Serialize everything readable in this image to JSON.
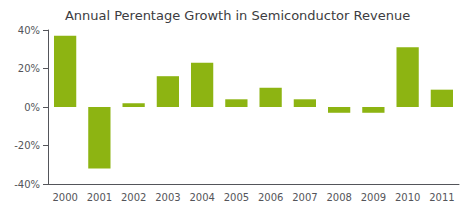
{
  "chart_data": {
    "type": "bar",
    "title": "Annual Perentage Growth in Semiconductor Revenue",
    "categories": [
      "2000",
      "2001",
      "2002",
      "2003",
      "2004",
      "2005",
      "2006",
      "2007",
      "2008",
      "2009",
      "2010",
      "2011"
    ],
    "values": [
      37,
      -32,
      2,
      16,
      23,
      4,
      10,
      4,
      -3,
      -3,
      31,
      9
    ],
    "color": "#8db412",
    "ylim": [
      -40,
      40
    ],
    "yticks": [
      {
        "value": -40,
        "label": "-40%"
      },
      {
        "value": -20,
        "label": "-20%"
      },
      {
        "value": 0,
        "label": "0%"
      },
      {
        "value": 20,
        "label": "20%"
      },
      {
        "value": 40,
        "label": "40%"
      }
    ],
    "grid": false
  }
}
